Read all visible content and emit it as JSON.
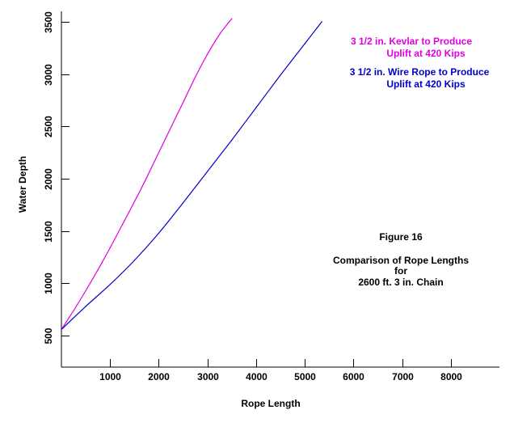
{
  "colors": {
    "background": "#ffffff",
    "axis": "#000000",
    "text": "#000000",
    "kevlar": "#e000e0",
    "wire": "#0000c8"
  },
  "chart_data": {
    "type": "line",
    "title": "",
    "xlabel": "Rope Length",
    "ylabel": "Water Depth",
    "xlim": [
      0,
      9000
    ],
    "ylim": [
      200,
      3600
    ],
    "x_ticks": [
      1000,
      2000,
      3000,
      4000,
      5000,
      6000,
      7000,
      8000
    ],
    "y_ticks": [
      500,
      1000,
      1500,
      2000,
      2500,
      3000,
      3500
    ],
    "x_tick_labels": [
      "1000",
      "2000",
      "3000",
      "4000",
      "5000",
      "6000",
      "7000",
      "8000"
    ],
    "y_tick_labels": [
      "500",
      "1000",
      "1500",
      "2000",
      "2500",
      "3000",
      "3500"
    ],
    "grid": false,
    "legend": "top-right",
    "series": [
      {
        "name": "3 1/2 in. Kevlar to Produce Uplift at 420 Kips",
        "legend_lines": [
          "3 1/2 in. Kevlar to Produce",
          "Uplift at 420 Kips"
        ],
        "color": "#e000e0",
        "x": [
          0,
          250,
          500,
          750,
          1000,
          1250,
          1500,
          1750,
          2000,
          2250,
          2500,
          2750,
          3000,
          3250,
          3500
        ],
        "y": [
          560,
          740,
          930,
          1130,
          1340,
          1560,
          1780,
          2010,
          2250,
          2490,
          2730,
          2970,
          3190,
          3380,
          3530
        ]
      },
      {
        "name": "3 1/2 in. Wire Rope to Produce Uplift at 420 Kips",
        "legend_lines": [
          "3 1/2 in. Wire Rope to Produce",
          "Uplift at 420 Kips"
        ],
        "color": "#0000c8",
        "x": [
          0,
          500,
          1000,
          1500,
          2000,
          2500,
          3000,
          3500,
          4000,
          4500,
          5000,
          5350
        ],
        "y": [
          560,
          780,
          990,
          1220,
          1480,
          1770,
          2070,
          2370,
          2680,
          2990,
          3290,
          3500
        ]
      }
    ],
    "annotations": [
      "Figure 16",
      "Comparison of Rope Lengths",
      "for",
      "2600 ft.  3 in. Chain"
    ]
  }
}
